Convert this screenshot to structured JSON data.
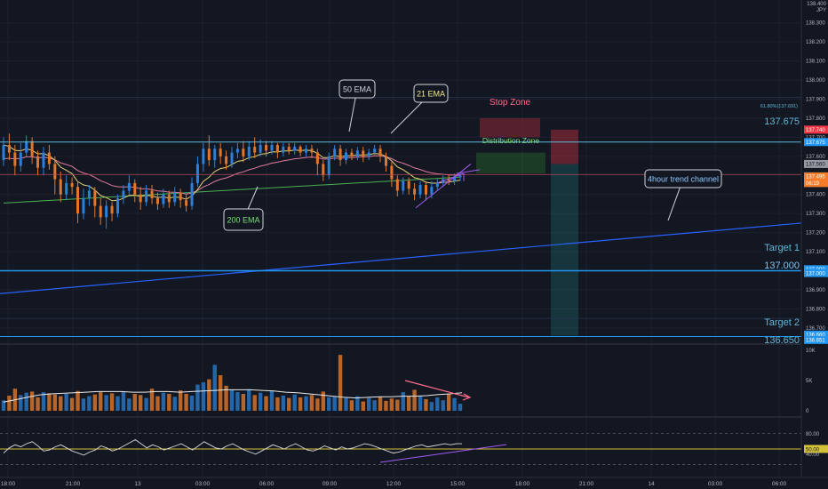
{
  "chart_data": [
    {
      "type": "candlestick",
      "instrument": "JPY",
      "price_scale_top": "138.400",
      "ylim": [
        136.62,
        138.42
      ],
      "y_ticks": [
        "138.300",
        "138.200",
        "138.100",
        "138.000",
        "137.900",
        "137.800",
        "137.700",
        "137.600",
        "137.400",
        "137.300",
        "137.200",
        "137.100",
        "136.900",
        "136.800",
        "136.700"
      ],
      "x_ticks": [
        {
          "label": "18:00",
          "x": 9
        },
        {
          "label": "21:00",
          "x": 82
        },
        {
          "label": "13",
          "x": 155
        },
        {
          "label": "03:00",
          "x": 228
        },
        {
          "label": "06:00",
          "x": 300
        },
        {
          "label": "09:00",
          "x": 371
        },
        {
          "label": "12:00",
          "x": 443
        },
        {
          "label": "15:00",
          "x": 515
        },
        {
          "label": "18:00",
          "x": 588
        },
        {
          "label": "21:00",
          "x": 660
        },
        {
          "label": "14",
          "x": 733
        },
        {
          "label": "03:00",
          "x": 805
        },
        {
          "label": "06:00",
          "x": 877
        }
      ],
      "price_labels": [
        {
          "text": "137.740",
          "price": 137.74,
          "bg": "#f23645",
          "fg": "#ffffff"
        },
        {
          "text": "137.675",
          "price": 137.675,
          "bg": "#2196f3",
          "fg": "#ffffff"
        },
        {
          "text": "137.560",
          "price": 137.56,
          "bg": "#9598a1",
          "fg": "#131722"
        },
        {
          "text": "137.495",
          "price": 137.495,
          "bg": "#f57c2a",
          "fg": "#ffffff"
        },
        {
          "text": "06:19",
          "price": 137.46,
          "bg": "#f57c2a",
          "fg": "#ffffff"
        },
        {
          "text": "137.000",
          "price": 137.008,
          "bg": "#2196f3",
          "fg": "#ffffff"
        },
        {
          "text": "137.000",
          "price": 136.988,
          "bg": "#2196f3",
          "fg": "#ffffff"
        },
        {
          "text": "136.660",
          "price": 136.665,
          "bg": "#2196f3",
          "fg": "#ffffff"
        },
        {
          "text": "136.651",
          "price": 136.637,
          "bg": "#2196f3",
          "fg": "#ffffff"
        }
      ],
      "levels": [
        {
          "text": "137.675",
          "price": 137.675
        },
        {
          "text": "Target 1",
          "price": 137.03
        },
        {
          "text": "137.000",
          "price": 136.97
        },
        {
          "text": "Target 2",
          "price": 136.68
        },
        {
          "text": "136.650",
          "price": 136.62
        }
      ],
      "fib_label": "61.80%(137.691)",
      "annotations": [
        {
          "text": "50 EMA",
          "color": "#d1d4dc"
        },
        {
          "text": "21 EMA",
          "color": "#f0e68c"
        },
        {
          "text": "200 EMA",
          "color": "#7ee07e"
        },
        {
          "text": "Stop Zone",
          "color": "#ff6b8b"
        },
        {
          "text": "Distribution Zone",
          "color": "#7ee07e"
        },
        {
          "text": "4hour trend channel",
          "color": "#8fc7ff"
        }
      ],
      "candles": [
        [
          137.58,
          137.66,
          137.7,
          137.55
        ],
        [
          137.66,
          137.62,
          137.72,
          137.58
        ],
        [
          137.62,
          137.55,
          137.66,
          137.5
        ],
        [
          137.55,
          137.62,
          137.67,
          137.52
        ],
        [
          137.62,
          137.68,
          137.71,
          137.6
        ],
        [
          137.68,
          137.6,
          137.7,
          137.56
        ],
        [
          137.6,
          137.54,
          137.63,
          137.5
        ],
        [
          137.54,
          137.62,
          137.65,
          137.5
        ],
        [
          137.62,
          137.56,
          137.66,
          137.53
        ],
        [
          137.56,
          137.48,
          137.6,
          137.4
        ],
        [
          137.48,
          137.4,
          137.52,
          137.36
        ],
        [
          137.4,
          137.46,
          137.5,
          137.37
        ],
        [
          137.46,
          137.44,
          137.49,
          137.4
        ],
        [
          137.44,
          137.3,
          137.47,
          137.25
        ],
        [
          137.3,
          137.38,
          137.43,
          137.27
        ],
        [
          137.38,
          137.42,
          137.45,
          137.34
        ],
        [
          137.42,
          137.34,
          137.44,
          137.28
        ],
        [
          137.34,
          137.28,
          137.38,
          137.24
        ],
        [
          137.28,
          137.34,
          137.37,
          137.22
        ],
        [
          137.34,
          137.3,
          137.36,
          137.26
        ],
        [
          137.3,
          137.38,
          137.4,
          137.28
        ],
        [
          137.38,
          137.42,
          137.45,
          137.35
        ],
        [
          137.42,
          137.46,
          137.5,
          137.4
        ],
        [
          137.46,
          137.4,
          137.48,
          137.36
        ],
        [
          137.4,
          137.36,
          137.44,
          137.32
        ],
        [
          137.36,
          137.42,
          137.45,
          137.34
        ],
        [
          137.42,
          137.38,
          137.45,
          137.35
        ],
        [
          137.38,
          137.35,
          137.41,
          137.32
        ],
        [
          137.35,
          137.4,
          137.43,
          137.33
        ],
        [
          137.4,
          137.36,
          137.42,
          137.33
        ],
        [
          137.36,
          137.41,
          137.44,
          137.34
        ],
        [
          137.41,
          137.37,
          137.43,
          137.33
        ],
        [
          137.37,
          137.34,
          137.4,
          137.31
        ],
        [
          137.34,
          137.46,
          137.49,
          137.32
        ],
        [
          137.46,
          137.56,
          137.6,
          137.44
        ],
        [
          137.56,
          137.64,
          137.67,
          137.52
        ],
        [
          137.64,
          137.58,
          137.71,
          137.55
        ],
        [
          137.58,
          137.64,
          137.66,
          137.54
        ],
        [
          137.64,
          137.6,
          137.67,
          137.56
        ],
        [
          137.6,
          137.56,
          137.63,
          137.53
        ],
        [
          137.56,
          137.62,
          137.65,
          137.54
        ],
        [
          137.62,
          137.64,
          137.67,
          137.59
        ],
        [
          137.64,
          137.6,
          137.68,
          137.57
        ],
        [
          137.6,
          137.65,
          137.68,
          137.58
        ],
        [
          137.65,
          137.62,
          137.7,
          137.59
        ],
        [
          137.62,
          137.66,
          137.69,
          137.6
        ],
        [
          137.66,
          137.63,
          137.68,
          137.6
        ],
        [
          137.63,
          137.66,
          137.68,
          137.61
        ],
        [
          137.66,
          137.62,
          137.67,
          137.59
        ],
        [
          137.62,
          137.65,
          137.67,
          137.6
        ],
        [
          137.65,
          137.63,
          137.67,
          137.61
        ],
        [
          137.63,
          137.65,
          137.67,
          137.61
        ],
        [
          137.65,
          137.62,
          137.66,
          137.6
        ],
        [
          137.62,
          137.64,
          137.66,
          137.6
        ],
        [
          137.64,
          137.62,
          137.66,
          137.59
        ],
        [
          137.62,
          137.56,
          137.64,
          137.5
        ],
        [
          137.56,
          137.5,
          137.58,
          137.47
        ],
        [
          137.5,
          137.6,
          137.62,
          137.48
        ],
        [
          137.6,
          137.64,
          137.66,
          137.58
        ],
        [
          137.64,
          137.58,
          137.66,
          137.55
        ],
        [
          137.58,
          137.62,
          137.64,
          137.56
        ],
        [
          137.62,
          137.6,
          137.64,
          137.58
        ],
        [
          137.6,
          137.63,
          137.65,
          137.58
        ],
        [
          137.63,
          137.6,
          137.65,
          137.57
        ],
        [
          137.6,
          137.62,
          137.64,
          137.58
        ],
        [
          137.62,
          137.64,
          137.66,
          137.6
        ],
        [
          137.64,
          137.6,
          137.66,
          137.57
        ],
        [
          137.6,
          137.55,
          137.62,
          137.52
        ],
        [
          137.55,
          137.48,
          137.57,
          137.44
        ],
        [
          137.48,
          137.42,
          137.5,
          137.39
        ],
        [
          137.42,
          137.47,
          137.49,
          137.4
        ],
        [
          137.47,
          137.43,
          137.49,
          137.4
        ],
        [
          137.43,
          137.4,
          137.46,
          137.37
        ],
        [
          137.4,
          137.45,
          137.47,
          137.38
        ],
        [
          137.45,
          137.4,
          137.47,
          137.37
        ],
        [
          137.4,
          137.44,
          137.47,
          137.38
        ],
        [
          137.44,
          137.46,
          137.48,
          137.42
        ],
        [
          137.46,
          137.48,
          137.5,
          137.44
        ],
        [
          137.48,
          137.47,
          137.5,
          137.45
        ],
        [
          137.47,
          137.49,
          137.51,
          137.45
        ],
        [
          137.49,
          137.5,
          137.51,
          137.47
        ]
      ]
    },
    {
      "type": "bar",
      "name": "volume",
      "y_ticks": [
        "10K",
        "5K",
        "0"
      ],
      "ylim": [
        0,
        11000
      ],
      "values": [
        1800,
        2600,
        3800,
        2700,
        3100,
        3300,
        2300,
        3200,
        3000,
        2800,
        2500,
        2900,
        2200,
        3400,
        2100,
        2500,
        2800,
        3200,
        2700,
        3000,
        2500,
        3300,
        2100,
        2900,
        2700,
        2200,
        3800,
        2500,
        3100,
        2900,
        2400,
        3500,
        2900,
        2600,
        4500,
        4900,
        5400,
        7900,
        6100,
        4300,
        3600,
        3200,
        2900,
        3700,
        2700,
        3100,
        2500,
        3400,
        2300,
        2600,
        2200,
        2800,
        2300,
        2500,
        2700,
        2100,
        3300,
        2300,
        2500,
        9600,
        2200,
        1800,
        2500,
        1600,
        2200,
        1800,
        2400,
        1700,
        2100,
        1900,
        3200,
        2500,
        3600,
        2500,
        2000,
        1500,
        2300,
        1800,
        2900,
        2200,
        1200
      ],
      "avg_values": [
        1500,
        1900,
        2300,
        2700,
        2900,
        3000,
        3100,
        3200,
        3300,
        3300,
        3300,
        3200,
        3200,
        3300,
        3300,
        3200,
        3300,
        3400,
        3500,
        3600,
        3600,
        3600,
        3500,
        3400,
        3200,
        3100,
        2900,
        2700,
        2500,
        2300,
        2200,
        2300,
        2400,
        2400,
        2500,
        2500,
        2600,
        2800,
        2900,
        3100
      ]
    },
    {
      "type": "line",
      "name": "oscillator",
      "y_ticks": [
        "80.00",
        "50.00",
        "40.00"
      ],
      "ylim": [
        -5,
        110
      ],
      "values": [
        42,
        52,
        58,
        54,
        60,
        64,
        56,
        46,
        48,
        54,
        58,
        52,
        46,
        42,
        38,
        44,
        48,
        56,
        52,
        46,
        50,
        56,
        62,
        68,
        60,
        52,
        58,
        54,
        48,
        52,
        56,
        60,
        54,
        48,
        56,
        64,
        58,
        52,
        50,
        56,
        60,
        54,
        48,
        44,
        40,
        46,
        52,
        58,
        54,
        50,
        56,
        60,
        54,
        48,
        46,
        50,
        56,
        52,
        48,
        54,
        50,
        52,
        56,
        60,
        58,
        54,
        50,
        46,
        42,
        44,
        48,
        52,
        56,
        58,
        54,
        56,
        58,
        60,
        58,
        60,
        60
      ],
      "level_50": 50
    }
  ]
}
